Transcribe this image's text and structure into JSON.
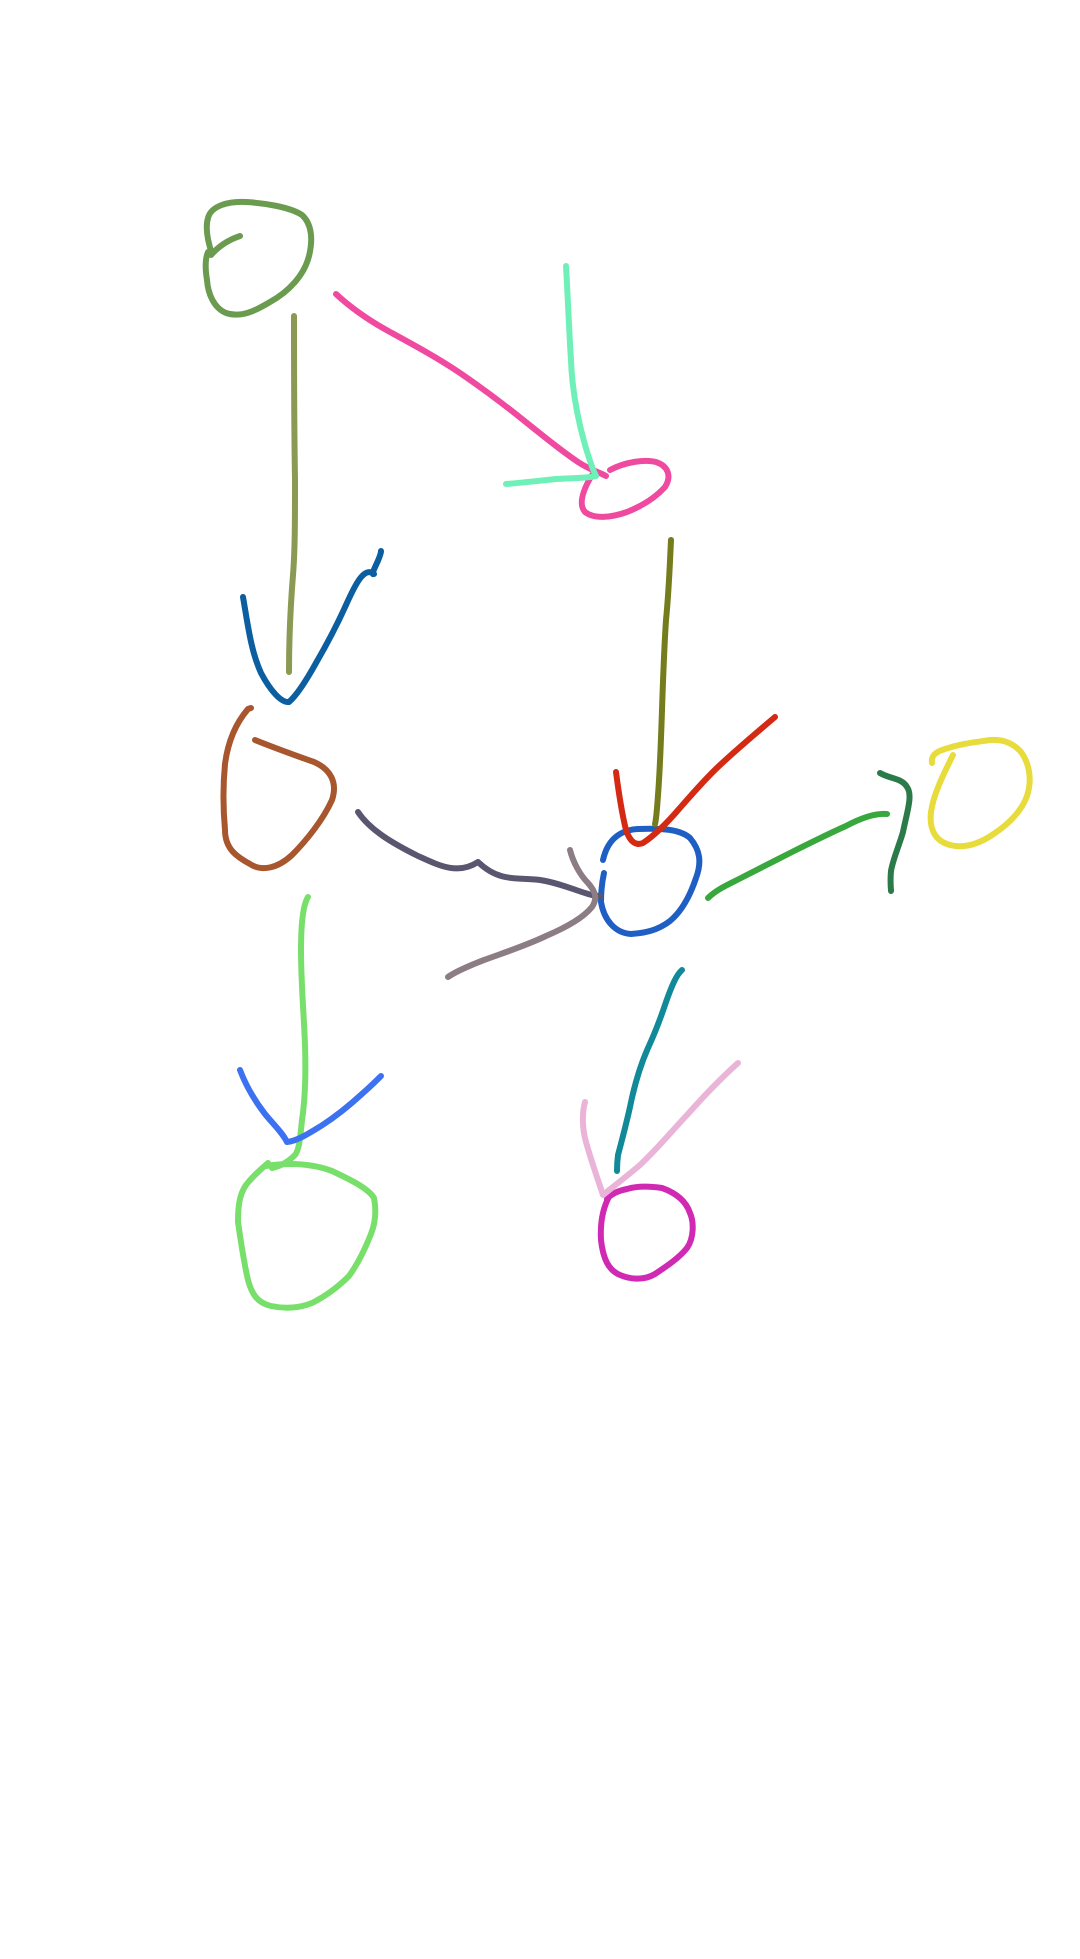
{
  "canvas": {
    "background": "#ffffff"
  },
  "colors": {
    "node_a": "#6a9b4f",
    "node_b": "#f04aa0",
    "node_c": "#a8562e",
    "node_d": "#1f5fc4",
    "node_e": "#e8dc3c",
    "node_f": "#78e06a",
    "node_g": "#d02ab4",
    "edge_a_c": "#8a9a52",
    "head_a_c": "#0b5ea0",
    "edge_a_b": "#f04aa0",
    "head_a_b": "#6ff0b8",
    "edge_b_d": "#747c1c",
    "head_b_d": "#d42a14",
    "edge_c_d": "#5a5670",
    "head_c_d": "#8c7c84",
    "edge_d_e": "#38a83c",
    "head_d_e": "#2a7a4a",
    "edge_c_f": "#78e06a",
    "head_c_f": "#3c72f0",
    "edge_d_g": "#108a98",
    "head_d_g": "#eab4d8"
  },
  "diagram": {
    "type": "hand-drawn directed graph",
    "nodes": [
      {
        "id": "A",
        "shape": "circle",
        "color_key": "node_a"
      },
      {
        "id": "B",
        "shape": "circle",
        "color_key": "node_b"
      },
      {
        "id": "C",
        "shape": "circle",
        "color_key": "node_c"
      },
      {
        "id": "D",
        "shape": "circle",
        "color_key": "node_d"
      },
      {
        "id": "E",
        "shape": "circle",
        "color_key": "node_e"
      },
      {
        "id": "F",
        "shape": "circle",
        "color_key": "node_f"
      },
      {
        "id": "G",
        "shape": "circle",
        "color_key": "node_g"
      }
    ],
    "edges": [
      {
        "from": "A",
        "to": "C"
      },
      {
        "from": "A",
        "to": "B"
      },
      {
        "from": "B",
        "to": "D"
      },
      {
        "from": "C",
        "to": "D"
      },
      {
        "from": "D",
        "to": "E"
      },
      {
        "from": "C",
        "to": "F"
      },
      {
        "from": "D",
        "to": "G"
      }
    ]
  }
}
